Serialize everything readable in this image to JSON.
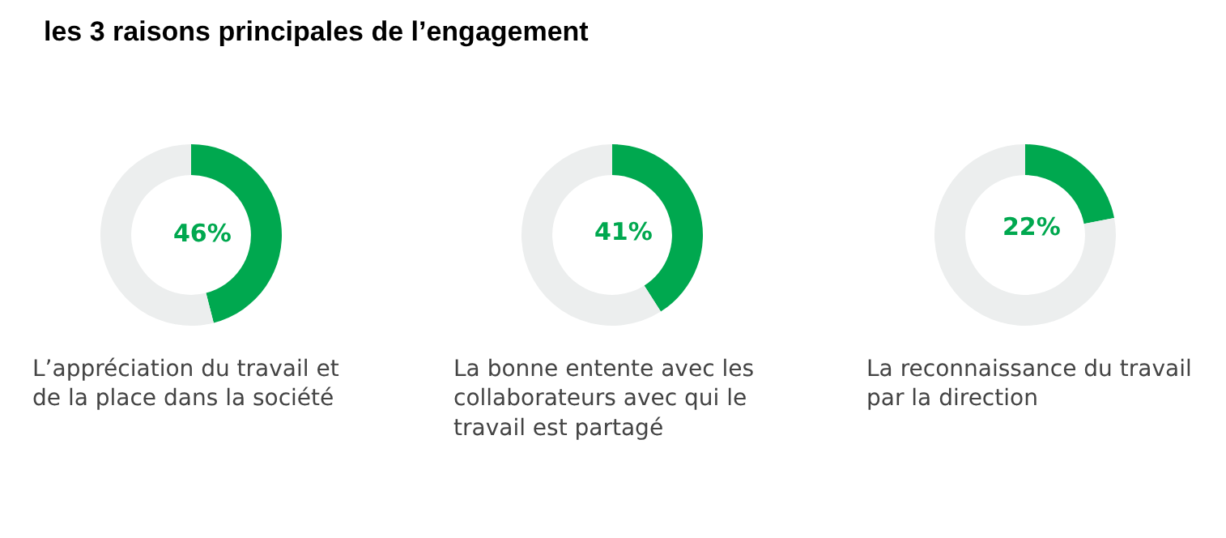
{
  "chart_data": [
    {
      "type": "donut",
      "title": "les 3 raisons principales de l’engagement",
      "categories": [
        null,
        null
      ],
      "values": [
        46,
        54
      ],
      "colors": [
        "#00a84f",
        "#eceeee"
      ],
      "value_labels": [
        "46%",
        null
      ],
      "xlabel": "L’appréciation du travail et\nde la place dans la société"
    },
    {
      "type": "donut",
      "categories": [
        null,
        null
      ],
      "values": [
        41,
        59
      ],
      "colors": [
        "#00a84f",
        "#eceeee"
      ],
      "value_labels": [
        "41%",
        null
      ],
      "xlabel": "La bonne entente avec les\ncollaborateurs avec qui le\ntravail est partagé"
    },
    {
      "type": "donut",
      "categories": [
        null,
        null
      ],
      "values": [
        22,
        78
      ],
      "colors": [
        "#00a84f",
        "#eceeee"
      ],
      "value_labels": [
        "22%",
        null
      ],
      "xlabel": "La reconnaissance du travail\npar la direction"
    }
  ]
}
